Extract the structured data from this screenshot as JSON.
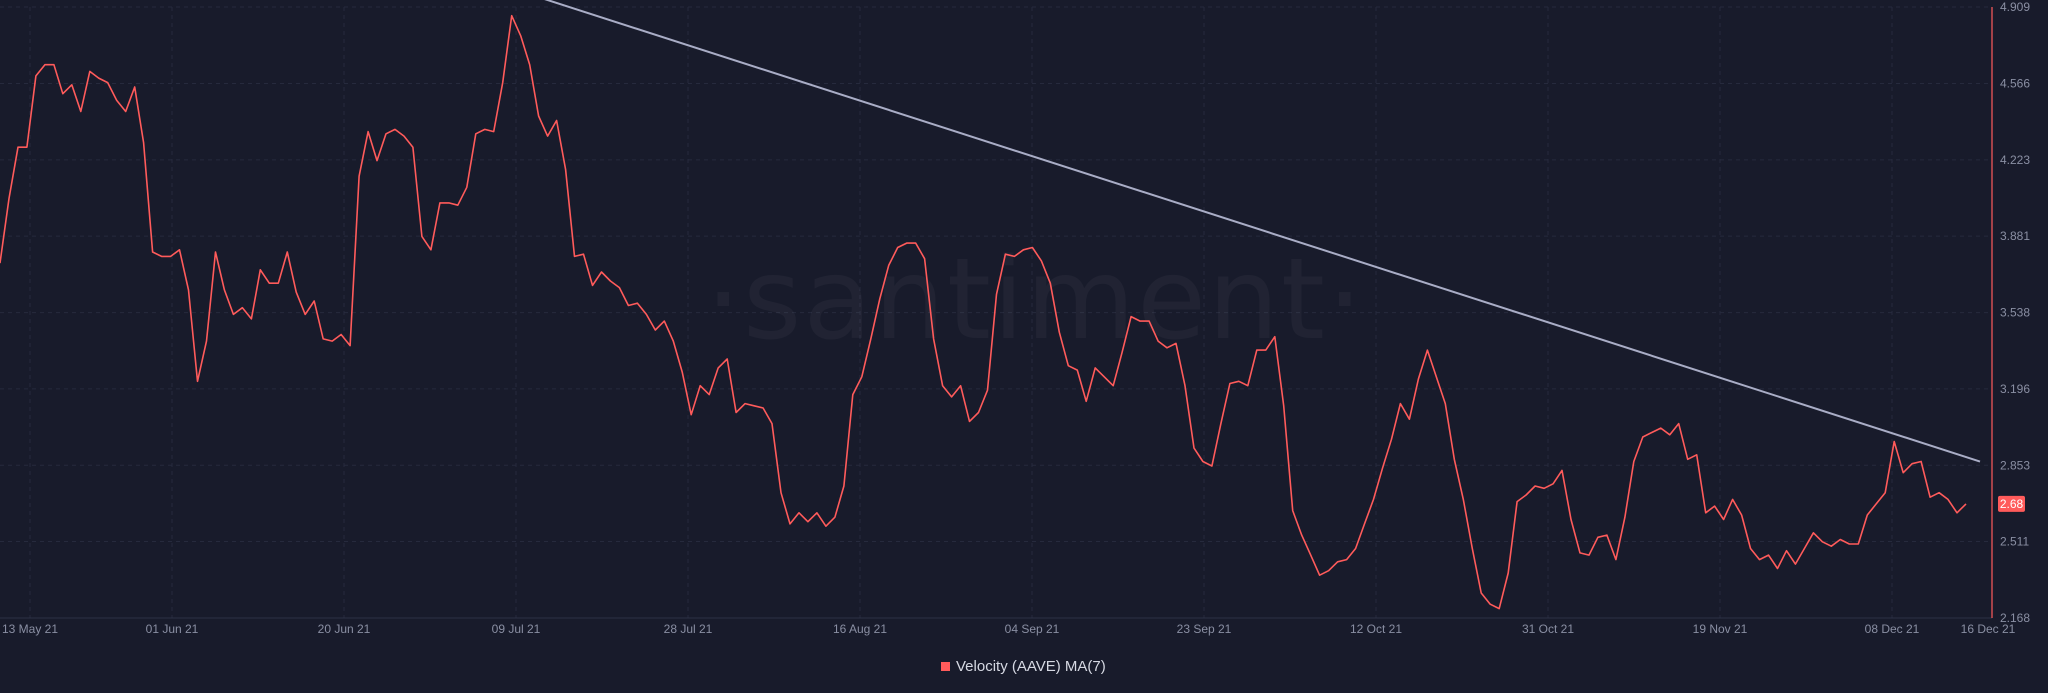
{
  "watermark": "·santiment·",
  "chart_data": {
    "type": "line",
    "x_tick_labels": [
      "13 May 21",
      "01 Jun 21",
      "20 Jun 21",
      "09 Jul 21",
      "28 Jul 21",
      "16 Aug 21",
      "04 Sep 21",
      "23 Sep 21",
      "12 Oct 21",
      "31 Oct 21",
      "19 Nov 21",
      "08 Dec 21",
      "16 Dec 21"
    ],
    "y_ticks": [
      2.168,
      2.511,
      2.853,
      3.196,
      3.538,
      3.881,
      4.223,
      4.566,
      4.909
    ],
    "ylim": [
      2.168,
      4.909
    ],
    "grid": true,
    "legend_position": "bottom-center",
    "series": [
      {
        "name": "Velocity (AAVE) MA(7)",
        "color": "#ff5b5b",
        "values": [
          3.76,
          4.05,
          4.28,
          4.28,
          4.6,
          4.65,
          4.65,
          4.52,
          4.56,
          4.44,
          4.62,
          4.59,
          4.57,
          4.49,
          4.44,
          4.55,
          4.3,
          3.81,
          3.79,
          3.79,
          3.82,
          3.64,
          3.23,
          3.41,
          3.81,
          3.64,
          3.53,
          3.56,
          3.51,
          3.73,
          3.67,
          3.67,
          3.81,
          3.63,
          3.53,
          3.59,
          3.42,
          3.41,
          3.44,
          3.39,
          4.15,
          4.35,
          4.22,
          4.34,
          4.36,
          4.33,
          4.28,
          3.88,
          3.82,
          4.03,
          4.03,
          4.02,
          4.1,
          4.34,
          4.36,
          4.35,
          4.57,
          4.87,
          4.78,
          4.65,
          4.42,
          4.33,
          4.4,
          4.18,
          3.79,
          3.8,
          3.66,
          3.72,
          3.68,
          3.65,
          3.57,
          3.58,
          3.53,
          3.46,
          3.5,
          3.41,
          3.27,
          3.08,
          3.21,
          3.17,
          3.29,
          3.33,
          3.09,
          3.13,
          3.12,
          3.11,
          3.04,
          2.73,
          2.59,
          2.64,
          2.6,
          2.64,
          2.58,
          2.62,
          2.76,
          3.17,
          3.25,
          3.42,
          3.6,
          3.75,
          3.83,
          3.85,
          3.85,
          3.78,
          3.42,
          3.21,
          3.16,
          3.21,
          3.05,
          3.09,
          3.19,
          3.62,
          3.8,
          3.79,
          3.82,
          3.83,
          3.77,
          3.67,
          3.45,
          3.3,
          3.28,
          3.14,
          3.29,
          3.25,
          3.21,
          3.36,
          3.52,
          3.5,
          3.5,
          3.41,
          3.38,
          3.4,
          3.21,
          2.93,
          2.87,
          2.85,
          3.04,
          3.22,
          3.23,
          3.21,
          3.37,
          3.37,
          3.43,
          3.12,
          2.65,
          2.54,
          2.45,
          2.36,
          2.38,
          2.42,
          2.43,
          2.48,
          2.59,
          2.7,
          2.84,
          2.97,
          3.13,
          3.06,
          3.24,
          3.37,
          3.25,
          3.13,
          2.88,
          2.7,
          2.48,
          2.28,
          2.23,
          2.21,
          2.37,
          2.69,
          2.72,
          2.76,
          2.75,
          2.77,
          2.83,
          2.61,
          2.46,
          2.45,
          2.53,
          2.54,
          2.43,
          2.62,
          2.87,
          2.98,
          3.0,
          3.02,
          2.99,
          3.04,
          2.88,
          2.9,
          2.64,
          2.67,
          2.61,
          2.7,
          2.63,
          2.48,
          2.43,
          2.45,
          2.39,
          2.47,
          2.41,
          2.48,
          2.55,
          2.51,
          2.49,
          2.52,
          2.5,
          2.5,
          2.63,
          2.68,
          2.73,
          2.96,
          2.82,
          2.86,
          2.87,
          2.71,
          2.73,
          2.7,
          2.64,
          2.68
        ],
        "last_value_label": "2.68"
      },
      {
        "name": "",
        "color": "#a9adc6",
        "kind": "trendline",
        "values": [
          4.97,
          2.87
        ]
      }
    ]
  }
}
